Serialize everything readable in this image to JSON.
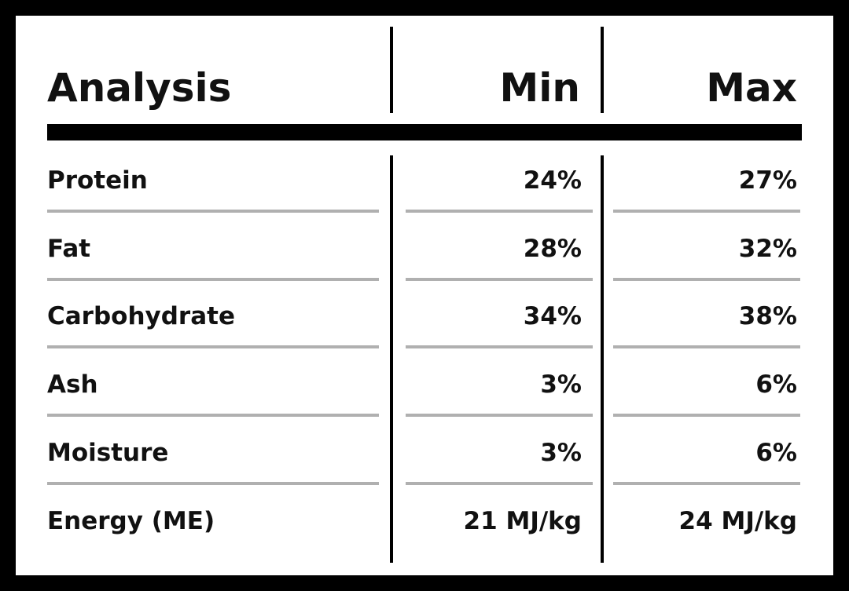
{
  "header": {
    "analysis": "Analysis",
    "min": "Min",
    "max": "Max"
  },
  "rows": [
    {
      "name": "Protein",
      "min": "24%",
      "max": "27%"
    },
    {
      "name": "Fat",
      "min": "28%",
      "max": "32%"
    },
    {
      "name": "Carbohydrate",
      "min": "34%",
      "max": "38%"
    },
    {
      "name": "Ash",
      "min": "3%",
      "max": "6%"
    },
    {
      "name": "Moisture",
      "min": "3%",
      "max": "6%"
    },
    {
      "name": "Energy (ME)",
      "min": "21 MJ/kg",
      "max": "24 MJ/kg"
    }
  ],
  "colors": {
    "frame": "#000000",
    "background": "#ffffff",
    "text": "#111111",
    "row_rule": "#b0b0b0"
  }
}
